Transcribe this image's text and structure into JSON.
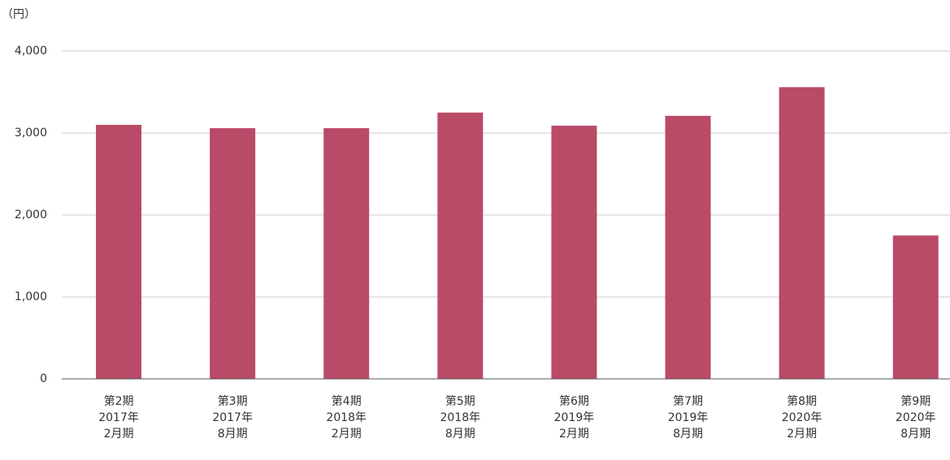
{
  "chart_data": {
    "type": "bar",
    "y_label": "（円）",
    "categories": [
      [
        "第2期",
        "2017年",
        "2月期"
      ],
      [
        "第3期",
        "2017年",
        "8月期"
      ],
      [
        "第4期",
        "2018年",
        "2月期"
      ],
      [
        "第5期",
        "2018年",
        "8月期"
      ],
      [
        "第6期",
        "2019年",
        "2月期"
      ],
      [
        "第7期",
        "2019年",
        "8月期"
      ],
      [
        "第8期",
        "2020年",
        "2月期"
      ],
      [
        "第9期",
        "2020年",
        "8月期"
      ]
    ],
    "values": [
      3100,
      3060,
      3060,
      3250,
      3090,
      3210,
      3560,
      1750
    ],
    "color": "#b94a68",
    "ylim": [
      0,
      4000
    ],
    "yticks": [
      0,
      {
        "value": 1000,
        "label": "1,000"
      },
      {
        "value": 2000,
        "label": "2,000"
      },
      {
        "value": 3000,
        "label": "3,000"
      },
      {
        "value": 4000,
        "label": "4,000"
      }
    ],
    "grid": true
  }
}
